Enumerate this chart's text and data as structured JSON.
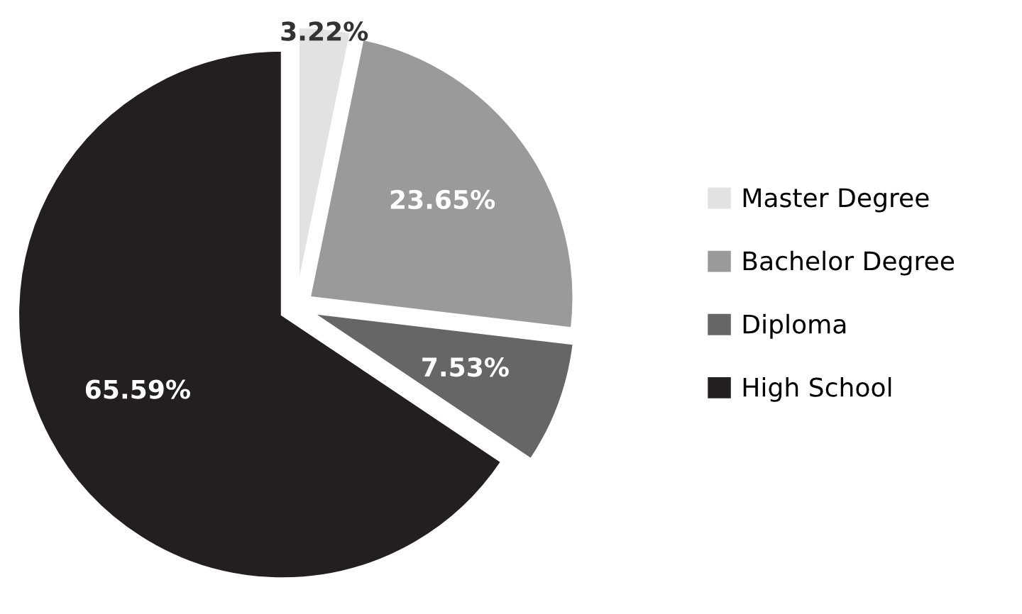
{
  "chart_data": {
    "type": "pie",
    "categories": [
      "Master Degree",
      "Bachelor Degree",
      "Diploma",
      "High School"
    ],
    "values": [
      3.22,
      23.65,
      7.53,
      65.59
    ],
    "colors": [
      "#e2e2e2",
      "#9a9a9a",
      "#666666",
      "#231f20"
    ],
    "value_labels": [
      "3.22%",
      "23.65%",
      "7.53%",
      "65.59%"
    ],
    "legend": "right"
  }
}
